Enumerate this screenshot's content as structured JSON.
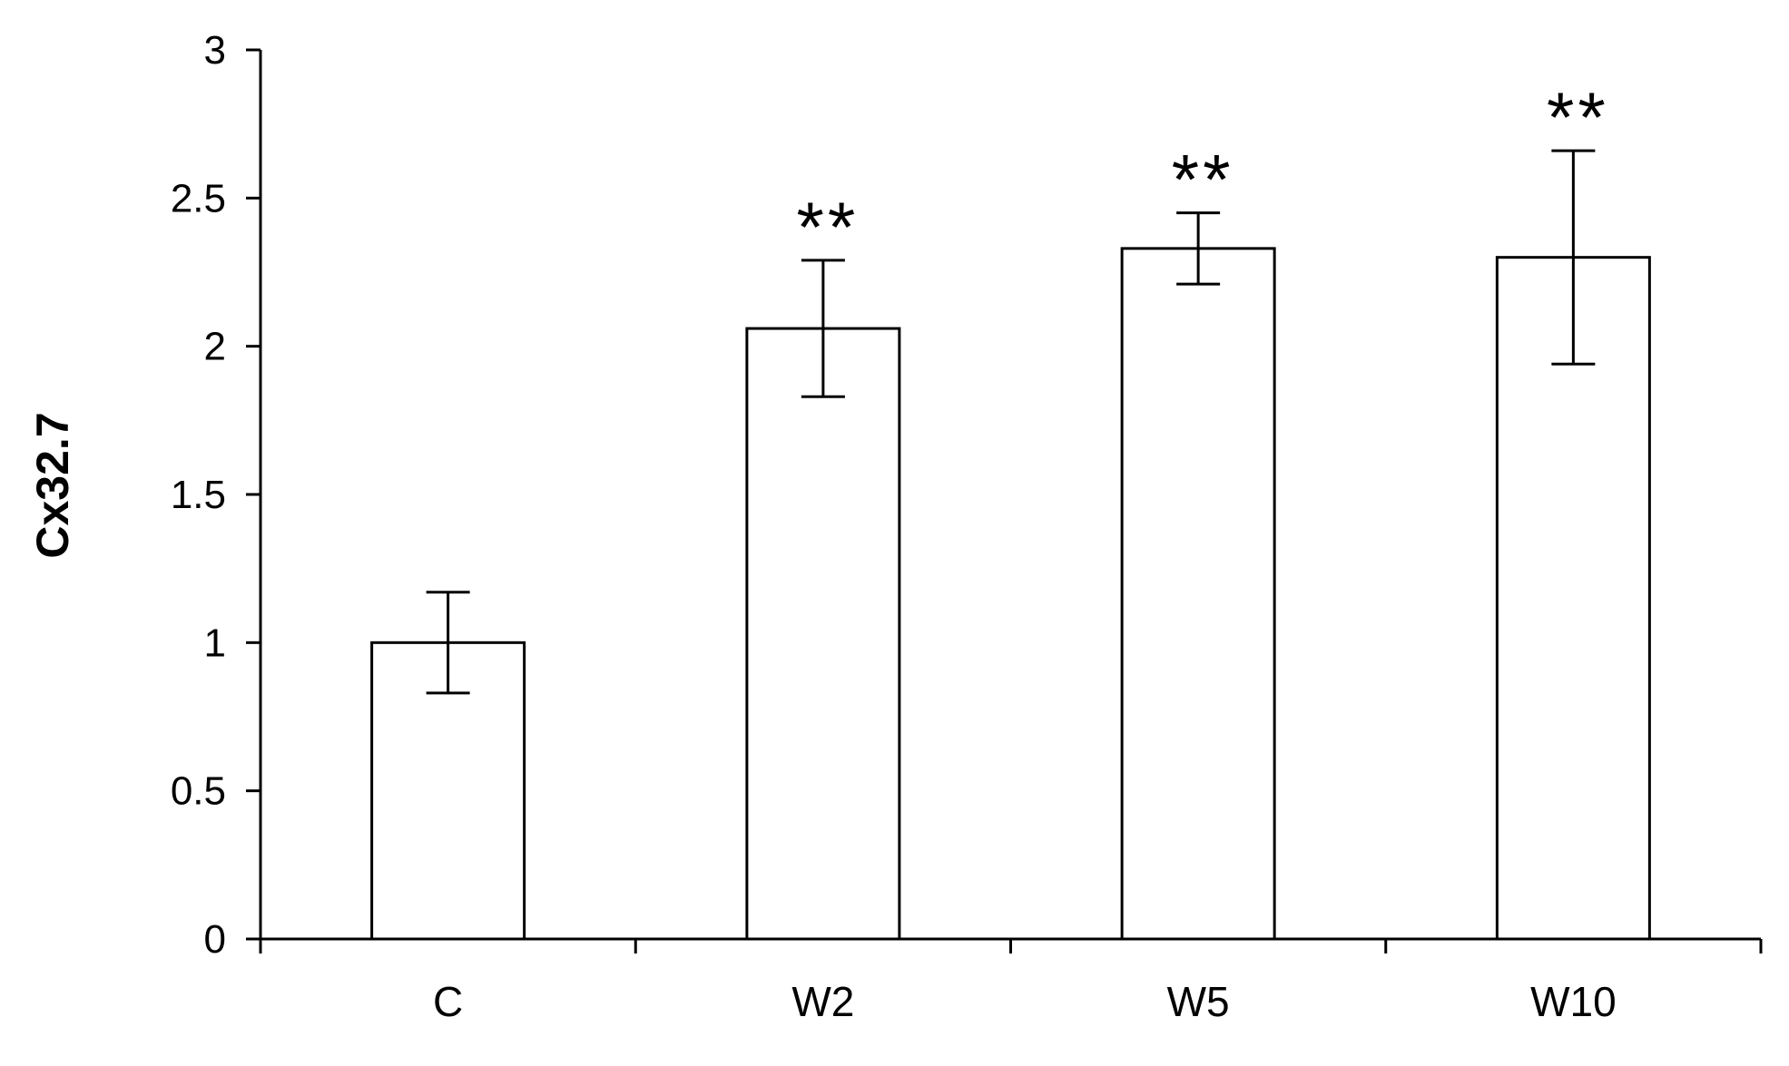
{
  "chart_data": {
    "type": "bar",
    "title": "",
    "xlabel": "",
    "ylabel": "Cx32.7",
    "categories": [
      "C",
      "W2",
      "W5",
      "W10"
    ],
    "values": [
      1.0,
      2.06,
      2.33,
      2.3
    ],
    "error": [
      0.17,
      0.23,
      0.12,
      0.36
    ],
    "significance": [
      "",
      "**",
      "**",
      "**"
    ],
    "ylim": [
      0,
      3
    ],
    "yticks": [
      0,
      0.5,
      1,
      1.5,
      2,
      2.5,
      3
    ],
    "ytick_labels": [
      "0",
      "0.5",
      "1",
      "1.5",
      "2",
      "2.5",
      "3"
    ],
    "grid": false,
    "colors": {
      "bar_fill": "#ffffff",
      "bar_stroke": "#000000",
      "axis": "#000000"
    }
  }
}
